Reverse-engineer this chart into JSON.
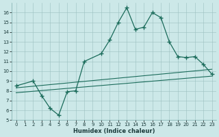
{
  "xlabel": "Humidex (Indice chaleur)",
  "bg_color": "#cce8e8",
  "line_color": "#1a6b5a",
  "xlim": [
    -0.5,
    23.5
  ],
  "ylim": [
    5,
    17
  ],
  "xticks": [
    0,
    1,
    2,
    3,
    4,
    5,
    6,
    7,
    8,
    9,
    10,
    11,
    12,
    13,
    14,
    15,
    16,
    17,
    18,
    19,
    20,
    21,
    22,
    23
  ],
  "yticks": [
    5,
    6,
    7,
    8,
    9,
    10,
    11,
    12,
    13,
    14,
    15,
    16
  ],
  "series1_x": [
    0,
    2,
    3,
    4,
    5,
    6,
    7,
    8,
    10,
    11,
    12,
    13,
    14,
    15,
    16,
    17,
    18,
    19,
    20,
    21,
    22,
    23
  ],
  "series1_y": [
    8.5,
    9.0,
    7.5,
    6.2,
    5.5,
    7.9,
    8.0,
    11.0,
    11.8,
    13.2,
    15.0,
    16.5,
    14.3,
    14.5,
    16.0,
    15.5,
    13.0,
    11.5,
    11.4,
    11.5,
    10.7,
    9.7
  ],
  "line2_x": [
    0,
    23
  ],
  "line2_y": [
    8.3,
    10.2
  ],
  "line3_x": [
    0,
    23
  ],
  "line3_y": [
    7.8,
    9.5
  ]
}
